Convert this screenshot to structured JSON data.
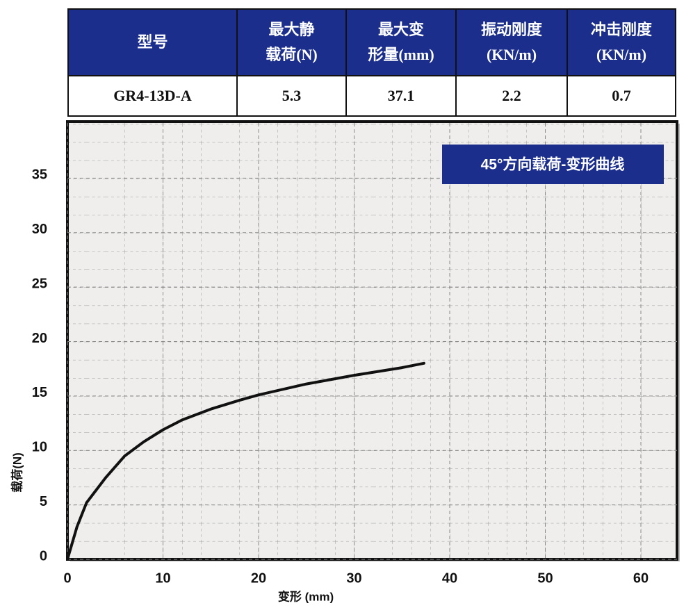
{
  "table": {
    "header": [
      "型号",
      "最大静\n载荷(N)",
      "最大变\n形量(mm)",
      "振动刚度\n(KN/m)",
      "冲击刚度\n(KN/m)"
    ],
    "rows": [
      [
        "GR4-13D-A",
        "5.3",
        "37.1",
        "2.2",
        "0.7"
      ]
    ]
  },
  "chart_data": {
    "type": "line",
    "annotation": "45°方向载荷-变形曲线",
    "x_label": "变形 (mm)",
    "y_label": "载荷(N)",
    "x": [
      0,
      1,
      2,
      4,
      6,
      8,
      10,
      12,
      15,
      18,
      20,
      25,
      30,
      35,
      37.3
    ],
    "series": [
      {
        "name": "载荷",
        "color": "#111111",
        "values": [
          0,
          3,
          5.2,
          7.5,
          9.5,
          10.8,
          11.9,
          12.8,
          13.8,
          14.6,
          15.1,
          16.1,
          16.9,
          17.6,
          18.0
        ]
      }
    ],
    "xlim": [
      0,
      64
    ],
    "ylim": [
      0,
      40
    ],
    "xticks": [
      0,
      10,
      20,
      30,
      40,
      50,
      60
    ],
    "yticks": [
      0,
      5,
      10,
      15,
      20,
      25,
      30,
      35
    ],
    "grid": true
  }
}
